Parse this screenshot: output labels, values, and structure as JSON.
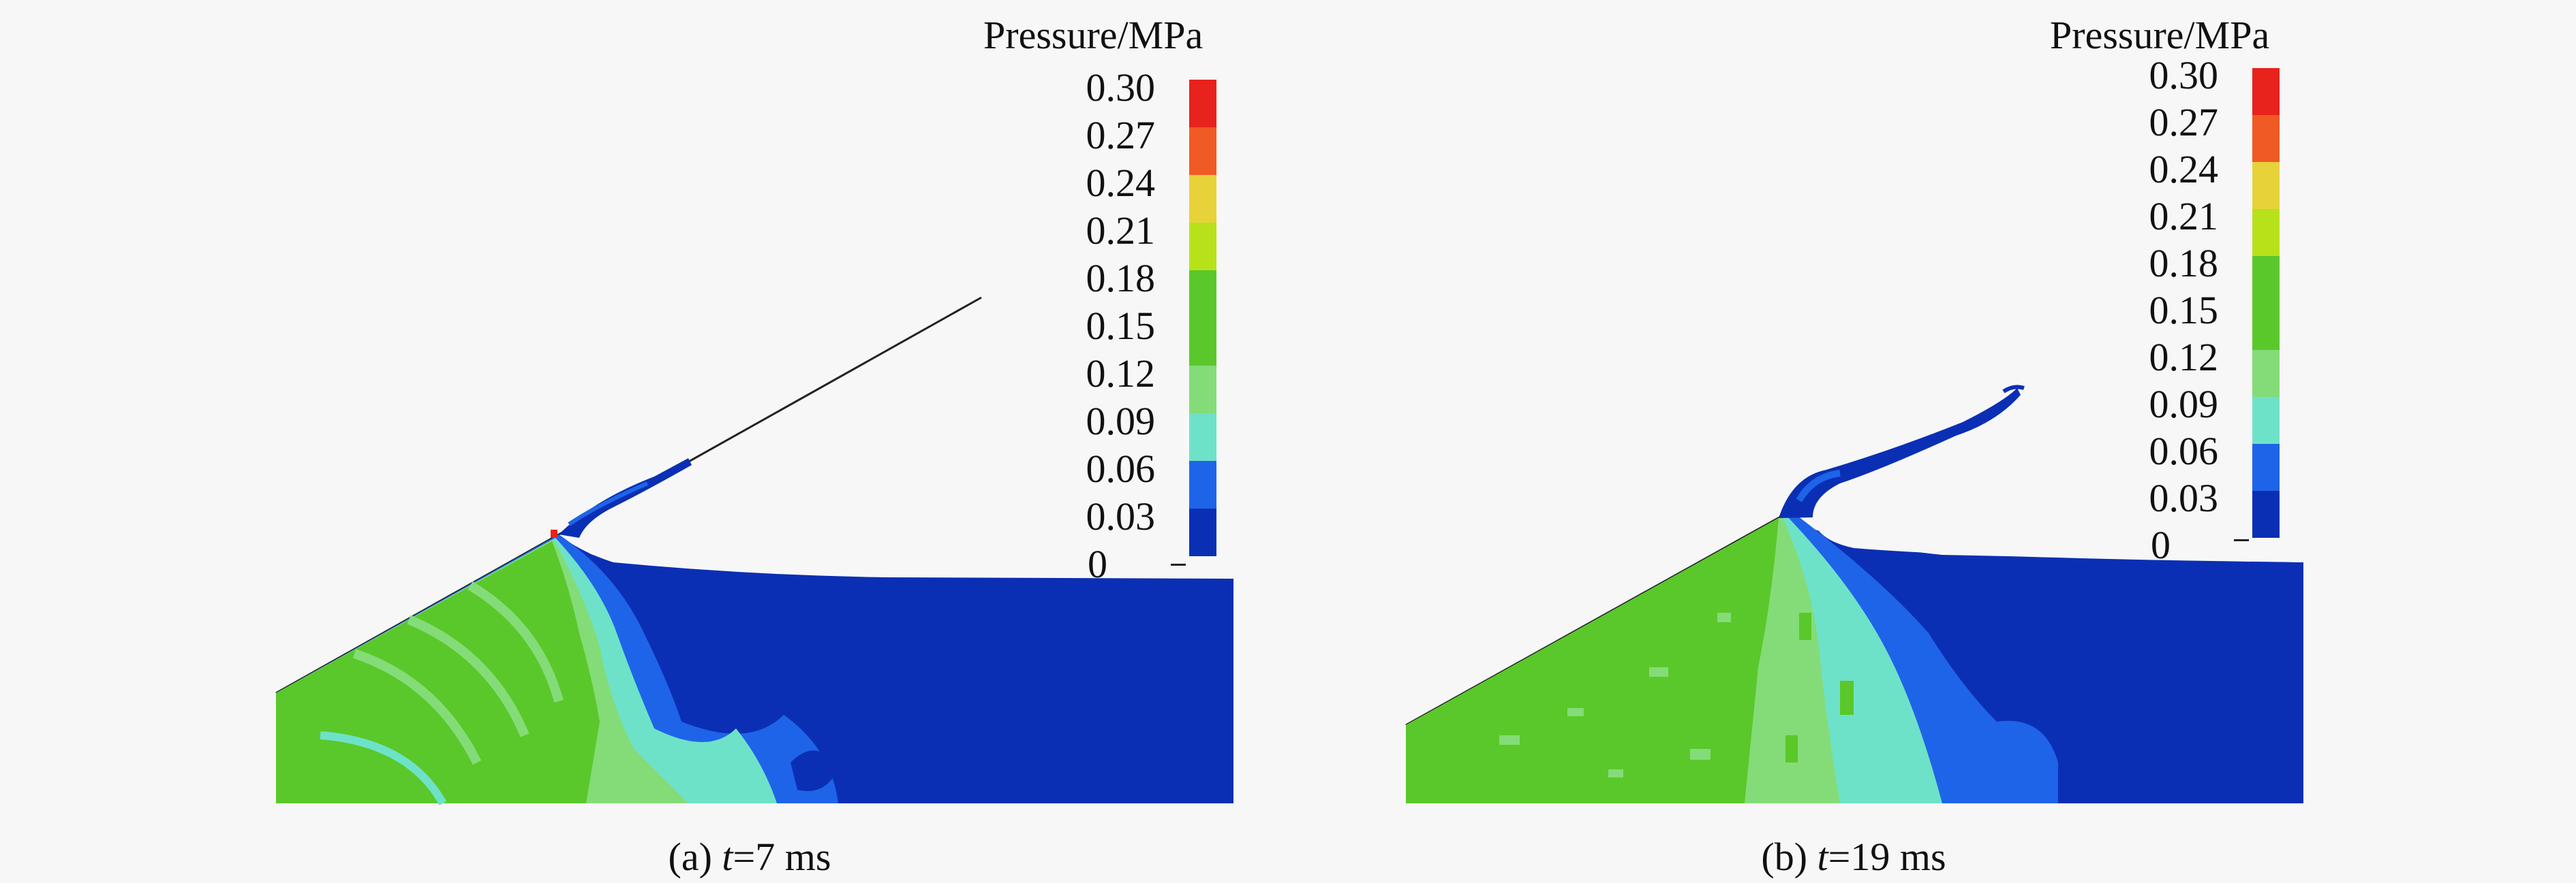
{
  "colorbar": {
    "title": "Pressure/MPa",
    "ticks": [
      "0.30",
      "0.27",
      "0.24",
      "0.21",
      "0.18",
      "0.15",
      "0.12",
      "0.09",
      "0.06",
      "0.03",
      "0"
    ],
    "colors": [
      "#e8221c",
      "#f05a24",
      "#e7d23a",
      "#b7e21a",
      "#5ac82a",
      "#5ac82a",
      "#84dc78",
      "#6ee2c8",
      "#1e64e8",
      "#0b2fb4"
    ]
  },
  "panels": [
    {
      "id": "a",
      "caption_prefix": "(a) ",
      "caption_var": "t",
      "caption_suffix": "=7 ms"
    },
    {
      "id": "b",
      "caption_prefix": "(b) ",
      "caption_var": "t",
      "caption_suffix": "=19 ms"
    }
  ]
}
